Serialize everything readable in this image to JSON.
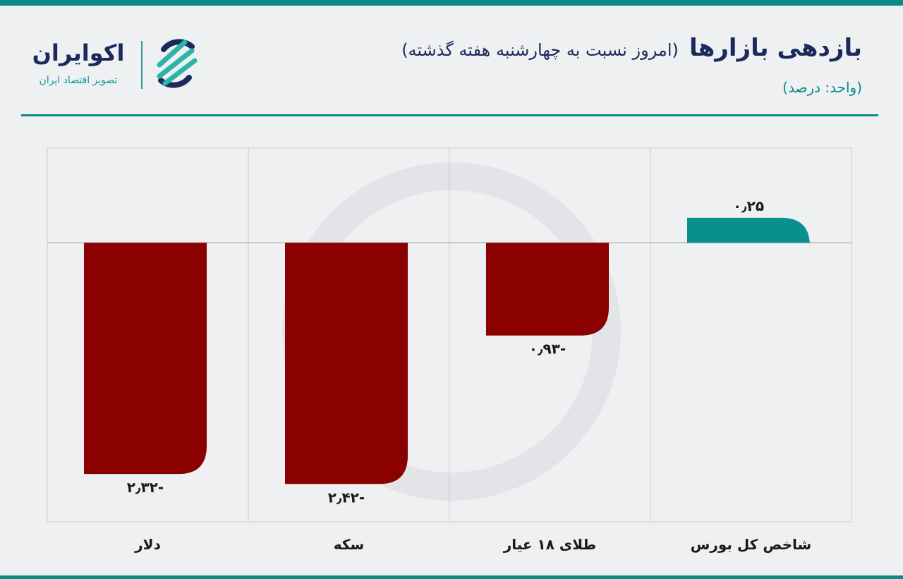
{
  "header": {
    "title": "بازدهی بازارها",
    "subtitle": "(امروز نسبت به چهارشنبه هفته گذشته)",
    "unit": "(واحد: درصد)"
  },
  "logo": {
    "name": "اکوایران",
    "tagline": "تصویر اقتصاد ایران"
  },
  "colors": {
    "accent": "#0b8a8a",
    "negative": "#8b0000",
    "positive": "#0a8f8f",
    "text": "#1b2a5c"
  },
  "chart_data": {
    "type": "bar",
    "title": "بازدهی بازارها (امروز نسبت به چهارشنبه هفته گذشته)",
    "ylabel": "درصد",
    "xlabel": "",
    "direction": "rtl",
    "categories": [
      "شاخص کل بورس",
      "طلای ۱۸ عیار",
      "سکه",
      "دلار"
    ],
    "values": [
      0.25,
      -0.93,
      -2.42,
      -2.32
    ],
    "value_labels": [
      "۰٫۲۵",
      "-۰٫۹۳",
      "-۲٫۴۲",
      "-۲٫۳۲"
    ],
    "ylim": [
      -2.8,
      0.95
    ],
    "grid": true,
    "legend": "none"
  }
}
